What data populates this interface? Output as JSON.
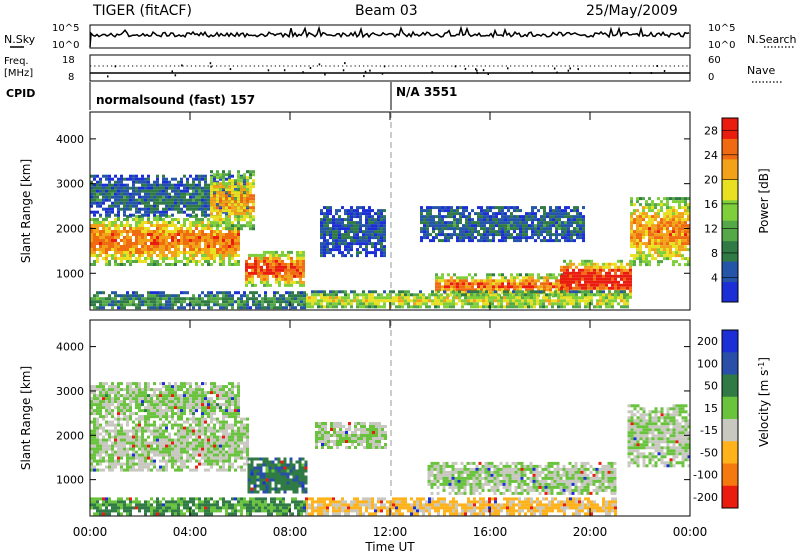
{
  "header": {
    "title": "TIGER (fitACF)",
    "beam": "Beam 03",
    "date": "25/May/2009"
  },
  "strip_labels": {
    "nsky": "N.Sky",
    "nsky_ticks": [
      "10^5",
      "10^0"
    ],
    "nsearch": "N.Search",
    "freq": "Freq.",
    "freq_unit": "[MHz]",
    "freq_ticks": [
      "18",
      "8"
    ],
    "nave": "Nave",
    "nave_ticks": [
      "60",
      "0"
    ],
    "cpid": "CPID",
    "cpid_mode1": "normalsound (fast) 157",
    "cpid_mode2": "N/A 3551"
  },
  "chart_data": [
    {
      "type": "heatmap",
      "panel": "power",
      "ylabel": "Slant Range [km]",
      "xlabel": "Time UT",
      "xticks": [
        "00:00",
        "04:00",
        "08:00",
        "12:00",
        "16:00",
        "20:00",
        "00:00"
      ],
      "xlim_hours": [
        0,
        24
      ],
      "yticks": [
        "1000",
        "2000",
        "3000",
        "4000"
      ],
      "ylim": [
        180,
        4600
      ],
      "colorbar": {
        "label": "Power [dB]",
        "ticks": [
          "4",
          "8",
          "12",
          "16",
          "20",
          "24",
          "28"
        ],
        "range": [
          0,
          30
        ],
        "colors": [
          "#1c2fd6",
          "#2455a8",
          "#2f7a45",
          "#55a848",
          "#7fcf3c",
          "#e8e020",
          "#f2a218",
          "#ef6a10",
          "#ea1c10"
        ]
      },
      "regions": [
        {
          "t0": 0.0,
          "t1": 6.0,
          "r0": 1200,
          "r1": 2300,
          "level": 22
        },
        {
          "t0": 0.0,
          "t1": 6.3,
          "r0": 2300,
          "r1": 3200,
          "level": 6
        },
        {
          "t0": 4.8,
          "t1": 6.5,
          "r0": 2000,
          "r1": 3300,
          "level": 20
        },
        {
          "t0": 6.2,
          "t1": 8.6,
          "r0": 750,
          "r1": 1500,
          "level": 24
        },
        {
          "t0": 9.2,
          "t1": 11.8,
          "r0": 1400,
          "r1": 2500,
          "level": 5
        },
        {
          "t0": 13.2,
          "t1": 19.8,
          "r0": 1700,
          "r1": 2500,
          "level": 6
        },
        {
          "t0": 13.8,
          "t1": 19.2,
          "r0": 500,
          "r1": 1000,
          "level": 22
        },
        {
          "t0": 18.8,
          "t1": 21.6,
          "r0": 450,
          "r1": 1300,
          "level": 27
        },
        {
          "t0": 21.6,
          "t1": 24.0,
          "r0": 1200,
          "r1": 2700,
          "level": 21
        },
        {
          "t0": 8.6,
          "t1": 21.5,
          "r0": 220,
          "r1": 620,
          "level": 16
        },
        {
          "t0": 0.0,
          "t1": 8.6,
          "r0": 220,
          "r1": 600,
          "level": 9
        }
      ]
    },
    {
      "type": "heatmap",
      "panel": "velocity",
      "ylabel": "Slant Range [km]",
      "xlabel": "Time UT",
      "xticks": [
        "00:00",
        "04:00",
        "08:00",
        "12:00",
        "16:00",
        "20:00",
        "00:00"
      ],
      "xlim_hours": [
        0,
        24
      ],
      "yticks": [
        "1000",
        "2000",
        "3000",
        "4000"
      ],
      "ylim": [
        180,
        4600
      ],
      "colorbar": {
        "label": "Velocity [m s",
        "label_sup": "-1",
        "label_end": "]",
        "ticks": [
          "200",
          "100",
          "50",
          "15",
          "-15",
          "-50",
          "-100",
          "-200"
        ],
        "colors": [
          "#1c2fd6",
          "#2a4fa8",
          "#2f7a45",
          "#69c33c",
          "#c8c8c0",
          "#ffb21a",
          "#f47a10",
          "#ea1c10"
        ]
      },
      "regions": [
        {
          "t0": 0.0,
          "t1": 6.3,
          "r0": 1200,
          "r1": 2400,
          "value": 0
        },
        {
          "t0": 0.0,
          "t1": 6.0,
          "r0": 2400,
          "r1": 3200,
          "value": 5
        },
        {
          "t0": 6.3,
          "t1": 8.6,
          "r0": 700,
          "r1": 1500,
          "value": 60
        },
        {
          "t0": 9.0,
          "t1": 11.8,
          "r0": 1700,
          "r1": 2300,
          "value": 0
        },
        {
          "t0": 13.5,
          "t1": 21.0,
          "r0": 700,
          "r1": 1400,
          "value": 0
        },
        {
          "t0": 21.5,
          "t1": 24.0,
          "r0": 1300,
          "r1": 2700,
          "value": 0
        },
        {
          "t0": 8.6,
          "t1": 21.0,
          "r0": 250,
          "r1": 600,
          "value": -40
        },
        {
          "t0": 0.0,
          "t1": 8.6,
          "r0": 250,
          "r1": 600,
          "value": 40
        }
      ]
    }
  ]
}
